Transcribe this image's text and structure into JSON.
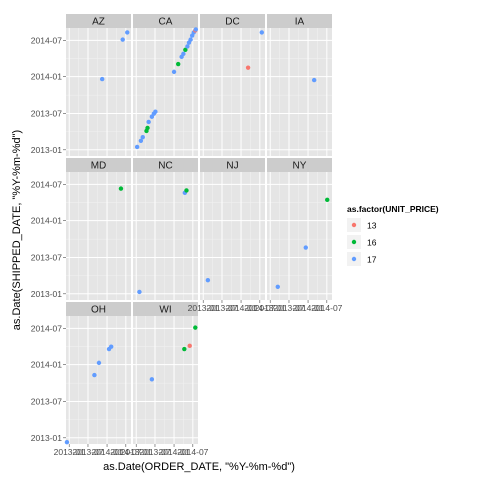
{
  "chart_data": {
    "type": "scatter",
    "facet_by": "state",
    "facet_layout": "wrap",
    "facet_columns": 4,
    "panels": [
      "AZ",
      "CA",
      "DC",
      "IA",
      "MD",
      "NC",
      "NJ",
      "NY",
      "OH",
      "WI"
    ],
    "xlabel": "as.Date(ORDER_DATE, \"%Y-%m-%d\")",
    "ylabel": "as.Date(SHIPPED_DATE, \"%Y-%m-%d\")",
    "x_ticks": [
      "2013-01",
      "2013-07",
      "2014-01",
      "2014-07"
    ],
    "y_ticks": [
      "2013-01",
      "2013-07",
      "2014-01",
      "2014-07"
    ],
    "xlim": [
      "2012-12-01",
      "2014-08-20"
    ],
    "ylim": [
      "2012-12-01",
      "2014-09-01"
    ],
    "grid": true,
    "legend": {
      "title": "as.factor(UNIT_PRICE)",
      "position": "right",
      "entries": [
        {
          "label": "13",
          "color": "#F8766D"
        },
        {
          "label": "16",
          "color": "#00BA38"
        },
        {
          "label": "17",
          "color": "#619CFF"
        }
      ]
    },
    "points": [
      {
        "panel": "AZ",
        "x": "2013-11-15",
        "y": "2013-12-20",
        "price": "17"
      },
      {
        "panel": "AZ",
        "x": "2014-06-01",
        "y": "2014-07-05",
        "price": "17"
      },
      {
        "panel": "AZ",
        "x": "2014-07-15",
        "y": "2014-08-10",
        "price": "17"
      },
      {
        "panel": "CA",
        "x": "2013-01-10",
        "y": "2013-01-15",
        "price": "17"
      },
      {
        "panel": "CA",
        "x": "2013-02-15",
        "y": "2013-02-15",
        "price": "17"
      },
      {
        "panel": "CA",
        "x": "2013-03-05",
        "y": "2013-03-05",
        "price": "17"
      },
      {
        "panel": "CA",
        "x": "2013-04-10",
        "y": "2013-04-05",
        "price": "16"
      },
      {
        "panel": "CA",
        "x": "2013-04-20",
        "y": "2013-04-20",
        "price": "16"
      },
      {
        "panel": "CA",
        "x": "2013-05-01",
        "y": "2013-05-20",
        "price": "17"
      },
      {
        "panel": "CA",
        "x": "2013-06-01",
        "y": "2013-06-15",
        "price": "17"
      },
      {
        "panel": "CA",
        "x": "2013-06-20",
        "y": "2013-06-30",
        "price": "17"
      },
      {
        "panel": "CA",
        "x": "2013-07-05",
        "y": "2013-07-10",
        "price": "17"
      },
      {
        "panel": "CA",
        "x": "2014-01-01",
        "y": "2014-01-25",
        "price": "17"
      },
      {
        "panel": "CA",
        "x": "2014-02-10",
        "y": "2014-03-05",
        "price": "16"
      },
      {
        "panel": "CA",
        "x": "2014-03-15",
        "y": "2014-04-10",
        "price": "17"
      },
      {
        "panel": "CA",
        "x": "2014-04-01",
        "y": "2014-04-25",
        "price": "17"
      },
      {
        "panel": "CA",
        "x": "2014-04-20",
        "y": "2014-05-15",
        "price": "16"
      },
      {
        "panel": "CA",
        "x": "2014-05-10",
        "y": "2014-06-01",
        "price": "17"
      },
      {
        "panel": "CA",
        "x": "2014-05-25",
        "y": "2014-06-20",
        "price": "17"
      },
      {
        "panel": "CA",
        "x": "2014-06-10",
        "y": "2014-07-05",
        "price": "17"
      },
      {
        "panel": "CA",
        "x": "2014-06-25",
        "y": "2014-07-25",
        "price": "17"
      },
      {
        "panel": "CA",
        "x": "2014-07-10",
        "y": "2014-08-10",
        "price": "17"
      },
      {
        "panel": "CA",
        "x": "2014-07-25",
        "y": "2014-08-20",
        "price": "13"
      },
      {
        "panel": "CA",
        "x": "2014-07-30",
        "y": "2014-08-25",
        "price": "17"
      },
      {
        "panel": "DC",
        "x": "2014-03-10",
        "y": "2014-02-15",
        "price": "13"
      },
      {
        "panel": "DC",
        "x": "2014-07-20",
        "y": "2014-08-10",
        "price": "17"
      },
      {
        "panel": "IA",
        "x": "2014-03-01",
        "y": "2013-12-15",
        "price": "17"
      },
      {
        "panel": "MD",
        "x": "2014-05-15",
        "y": "2014-06-10",
        "price": "16"
      },
      {
        "panel": "NC",
        "x": "2013-02-01",
        "y": "2013-01-10",
        "price": "17"
      },
      {
        "panel": "NC",
        "x": "2014-04-15",
        "y": "2014-05-20",
        "price": "17"
      },
      {
        "panel": "NC",
        "x": "2014-05-01",
        "y": "2014-06-01",
        "price": "16"
      },
      {
        "panel": "NJ",
        "x": "2013-02-15",
        "y": "2013-03-10",
        "price": "17"
      },
      {
        "panel": "NY",
        "x": "2013-03-15",
        "y": "2013-02-05",
        "price": "17"
      },
      {
        "panel": "NY",
        "x": "2013-12-10",
        "y": "2013-08-20",
        "price": "17"
      },
      {
        "panel": "NY",
        "x": "2014-07-05",
        "y": "2014-04-15",
        "price": "16"
      },
      {
        "panel": "OH",
        "x": "2012-12-10",
        "y": "2012-12-10",
        "price": "17"
      },
      {
        "panel": "OH",
        "x": "2013-09-01",
        "y": "2013-11-10",
        "price": "17"
      },
      {
        "panel": "OH",
        "x": "2013-10-15",
        "y": "2014-01-10",
        "price": "17"
      },
      {
        "panel": "OH",
        "x": "2014-01-20",
        "y": "2014-03-20",
        "price": "17"
      },
      {
        "panel": "OH",
        "x": "2014-02-10",
        "y": "2014-04-01",
        "price": "17"
      },
      {
        "panel": "WI",
        "x": "2013-06-01",
        "y": "2013-10-20",
        "price": "17"
      },
      {
        "panel": "WI",
        "x": "2014-04-10",
        "y": "2014-03-20",
        "price": "16"
      },
      {
        "panel": "WI",
        "x": "2014-06-01",
        "y": "2014-04-05",
        "price": "13"
      },
      {
        "panel": "WI",
        "x": "2014-07-25",
        "y": "2014-07-05",
        "price": "16"
      }
    ]
  }
}
